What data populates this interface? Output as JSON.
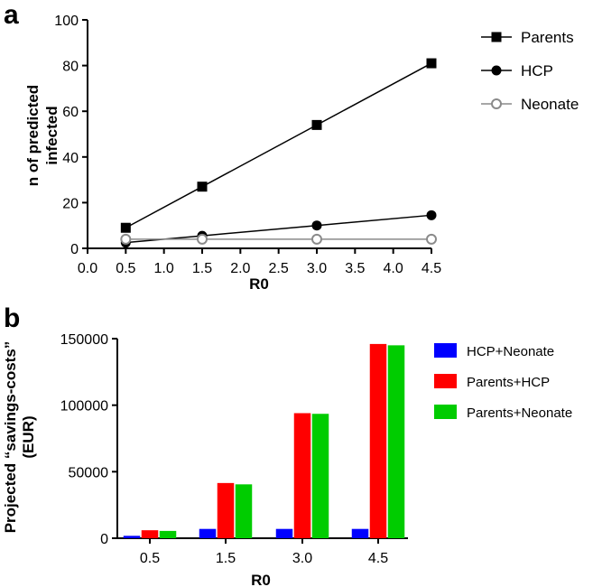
{
  "chart_data": [
    {
      "panel": "a",
      "type": "line",
      "xlabel": "R0",
      "ylabel_lines": [
        "n of predicted",
        "infected"
      ],
      "xlim": [
        0.0,
        4.5
      ],
      "ylim": [
        0,
        100
      ],
      "x_ticks": [
        "0.0",
        "0.5",
        "1.0",
        "1.5",
        "2.0",
        "2.5",
        "3.0",
        "3.5",
        "4.0",
        "4.5"
      ],
      "y_ticks": [
        "0",
        "20",
        "40",
        "60",
        "80",
        "100"
      ],
      "x": [
        0.5,
        1.5,
        3.0,
        4.5
      ],
      "series": [
        {
          "name": "Parents",
          "marker": "square",
          "values": [
            9,
            27,
            54,
            81
          ]
        },
        {
          "name": "HCP",
          "marker": "circle",
          "values": [
            2.5,
            5.5,
            10,
            14.5
          ]
        },
        {
          "name": "Neonate",
          "marker": "open-circle",
          "values": [
            4,
            4,
            4,
            4
          ]
        }
      ],
      "legend_position": "top-right"
    },
    {
      "panel": "b",
      "type": "bar",
      "xlabel": "R0",
      "ylabel_lines": [
        "Projected “savings-costs”",
        "(EUR)"
      ],
      "ylim": [
        0,
        150000
      ],
      "y_ticks": [
        "0",
        "50000",
        "100000",
        "150000"
      ],
      "categories": [
        "0.5",
        "1.5",
        "3.0",
        "4.5"
      ],
      "series": [
        {
          "name": "HCP+Neonate",
          "color": "#0000ff",
          "values": [
            1800,
            7000,
            7000,
            7000
          ]
        },
        {
          "name": "Parents+HCP",
          "color": "#ff0000",
          "values": [
            6000,
            41500,
            94000,
            146000
          ]
        },
        {
          "name": "Parents+Neonate",
          "color": "#00cc00",
          "values": [
            5500,
            40500,
            93500,
            145000
          ]
        }
      ],
      "legend_position": "top-right"
    }
  ],
  "labels": {
    "panel_a": "a",
    "panel_b": "b"
  }
}
